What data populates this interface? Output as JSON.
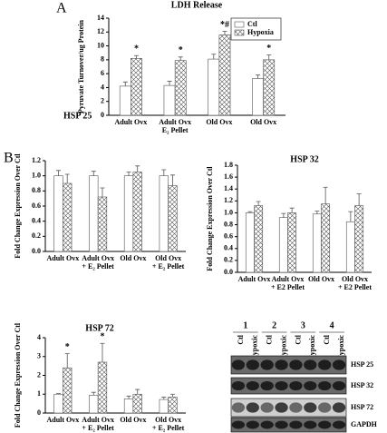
{
  "panels": [
    "A",
    "B"
  ],
  "chart_data": [
    {
      "type": "bar",
      "title": "LDH Release",
      "ylabel": "Pyruvate Turnover/ug Protein",
      "categories": [
        [
          "Adult Ovx"
        ],
        [
          "Adult Ovx",
          "E₂ Pellet"
        ],
        [
          "Old Ovx"
        ],
        [
          "Old Ovx"
        ]
      ],
      "series": [
        {
          "name": "Ctl",
          "color": "#ffffff",
          "values": [
            4.2,
            4.3,
            8.1,
            5.3
          ],
          "errors": [
            0.6,
            0.6,
            0.7,
            0.5
          ]
        },
        {
          "name": "Hypoxia",
          "color": "hatch",
          "values": [
            8.2,
            7.9,
            11.6,
            8.0
          ],
          "errors": [
            0.4,
            0.5,
            0.5,
            0.7
          ],
          "annotations": [
            "*",
            "*",
            "*#",
            "*"
          ]
        }
      ],
      "ylim": [
        0,
        14
      ],
      "yticks": [
        0,
        2,
        4,
        6,
        8,
        10,
        12,
        14
      ],
      "legend": "upper right"
    },
    {
      "type": "bar",
      "title": "HSP 25",
      "ylabel": "Fold Change Expression Over Ctl",
      "categories": [
        [
          "Adult Ovx"
        ],
        [
          "Adult Ovx",
          "+ E₂ Pellet"
        ],
        [
          "Old Ovx"
        ],
        [
          "Old Ovx",
          "+ E₂ Pellet"
        ]
      ],
      "series": [
        {
          "name": "Ctl",
          "color": "#ffffff",
          "values": [
            1.0,
            1.0,
            1.0,
            1.0
          ],
          "errors": [
            0.07,
            0.06,
            0.05,
            0.08
          ]
        },
        {
          "name": "Hypoxia",
          "color": "hatch",
          "values": [
            0.9,
            0.72,
            1.05,
            0.87
          ],
          "errors": [
            0.12,
            0.12,
            0.08,
            0.14
          ]
        }
      ],
      "ylim": [
        0,
        1.2
      ],
      "yticks": [
        {
          "value": 0,
          "label": "0.0"
        },
        0.2,
        0.4,
        0.6,
        0.8,
        {
          "value": 1,
          "label": "1.0"
        },
        1.2
      ]
    },
    {
      "type": "bar",
      "title": "HSP 32",
      "ylabel": "Fold Change Expression Over Ctl",
      "categories": [
        [
          "Adult Ovx"
        ],
        [
          "Adult Ovx",
          "+ E2 Pellet"
        ],
        [
          "Old Ovx"
        ],
        [
          "Old Ovx",
          "+ E2 Pellet"
        ]
      ],
      "series": [
        {
          "name": "Ctl",
          "color": "#ffffff",
          "values": [
            1.0,
            0.92,
            0.98,
            0.85
          ],
          "errors": [
            0.02,
            0.07,
            0.05,
            0.17
          ]
        },
        {
          "name": "Hypoxia",
          "color": "hatch",
          "values": [
            1.12,
            1.0,
            1.15,
            1.12
          ],
          "errors": [
            0.07,
            0.08,
            0.28,
            0.2
          ]
        }
      ],
      "ylim": [
        0,
        1.8
      ],
      "yticks": [
        {
          "value": 0,
          "label": "0.0"
        },
        0.2,
        0.4,
        0.6,
        0.8,
        {
          "value": 1,
          "label": "1.0"
        },
        1.2,
        1.4,
        1.6,
        1.8
      ]
    },
    {
      "type": "bar",
      "title": "HSP 72",
      "ylabel": "Fold Change Expression Over Ctl",
      "categories": [
        [
          "Adult Ovx"
        ],
        [
          "Adult Ovx",
          "+ E₂ Pellet"
        ],
        [
          "Old Ovx"
        ],
        [
          "Old Ovx",
          "+ E₂ Pellet"
        ]
      ],
      "series": [
        {
          "name": "Ctl",
          "color": "#ffffff",
          "values": [
            1.0,
            0.95,
            0.75,
            0.72
          ],
          "errors": [
            0.03,
            0.15,
            0.15,
            0.12
          ]
        },
        {
          "name": "Hypoxia",
          "color": "hatch",
          "values": [
            2.4,
            2.7,
            1.0,
            0.85
          ],
          "errors": [
            0.75,
            1.0,
            0.25,
            0.15
          ],
          "annotations": [
            "*",
            "*",
            null,
            null
          ]
        }
      ],
      "ylim": [
        0,
        4
      ],
      "yticks": [
        0,
        1,
        2,
        3,
        4
      ]
    }
  ],
  "blot": {
    "lanes": [
      "1",
      "2",
      "3",
      "4"
    ],
    "conditions": [
      "Ctl",
      "Hypoxic",
      "Ctl",
      "Hypoxic",
      "Ctl",
      "Hypoxic",
      "Ctl",
      "Hypoxic"
    ],
    "bands": [
      "HSP 25",
      "HSP 32",
      "HSP 72",
      "GAPDH"
    ]
  }
}
